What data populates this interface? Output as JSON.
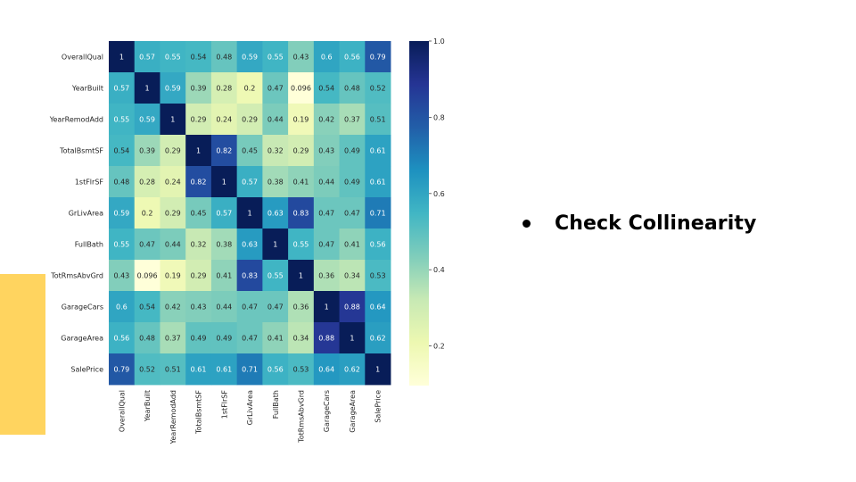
{
  "slide": {
    "bullet_text": "Check Collinearity",
    "accent_color": "#FFD45F"
  },
  "chart_data": {
    "type": "heatmap",
    "colormap": "YlGnBu",
    "row_labels": [
      "OverallQual",
      "YearBuilt",
      "YearRemodAdd",
      "TotalBsmtSF",
      "1stFlrSF",
      "GrLivArea",
      "FullBath",
      "TotRmsAbvGrd",
      "GarageCars",
      "GarageArea",
      "SalePrice"
    ],
    "col_labels": [
      "OverallQual",
      "YearBuilt",
      "YearRemodAdd",
      "TotalBsmtSF",
      "1stFlrSF",
      "GrLivArea",
      "FullBath",
      "TotRmsAbvGrd",
      "GarageCars",
      "GarageArea",
      "SalePrice"
    ],
    "values": [
      [
        1,
        0.57,
        0.55,
        0.54,
        0.48,
        0.59,
        0.55,
        0.43,
        0.6,
        0.56,
        0.79
      ],
      [
        0.57,
        1,
        0.59,
        0.39,
        0.28,
        0.2,
        0.47,
        0.096,
        0.54,
        0.48,
        0.52
      ],
      [
        0.55,
        0.59,
        1,
        0.29,
        0.24,
        0.29,
        0.44,
        0.19,
        0.42,
        0.37,
        0.51
      ],
      [
        0.54,
        0.39,
        0.29,
        1,
        0.82,
        0.45,
        0.32,
        0.29,
        0.43,
        0.49,
        0.61
      ],
      [
        0.48,
        0.28,
        0.24,
        0.82,
        1,
        0.57,
        0.38,
        0.41,
        0.44,
        0.49,
        0.61
      ],
      [
        0.59,
        0.2,
        0.29,
        0.45,
        0.57,
        1,
        0.63,
        0.83,
        0.47,
        0.47,
        0.71
      ],
      [
        0.55,
        0.47,
        0.44,
        0.32,
        0.38,
        0.63,
        1,
        0.55,
        0.47,
        0.41,
        0.56
      ],
      [
        0.43,
        0.096,
        0.19,
        0.29,
        0.41,
        0.83,
        0.55,
        1,
        0.36,
        0.34,
        0.53
      ],
      [
        0.6,
        0.54,
        0.42,
        0.43,
        0.44,
        0.47,
        0.47,
        0.36,
        1,
        0.88,
        0.64
      ],
      [
        0.56,
        0.48,
        0.37,
        0.49,
        0.49,
        0.47,
        0.41,
        0.34,
        0.88,
        1,
        0.62
      ],
      [
        0.79,
        0.52,
        0.51,
        0.61,
        0.61,
        0.71,
        0.56,
        0.53,
        0.64,
        0.62,
        1
      ]
    ],
    "vmin": 0.096,
    "vmax": 1.0,
    "colorbar_ticks": [
      1.0,
      0.8,
      0.6,
      0.4,
      0.2
    ],
    "colorbar_tick_labels": [
      "1.0",
      "0.8",
      "0.6",
      "0.4",
      "0.2"
    ]
  }
}
